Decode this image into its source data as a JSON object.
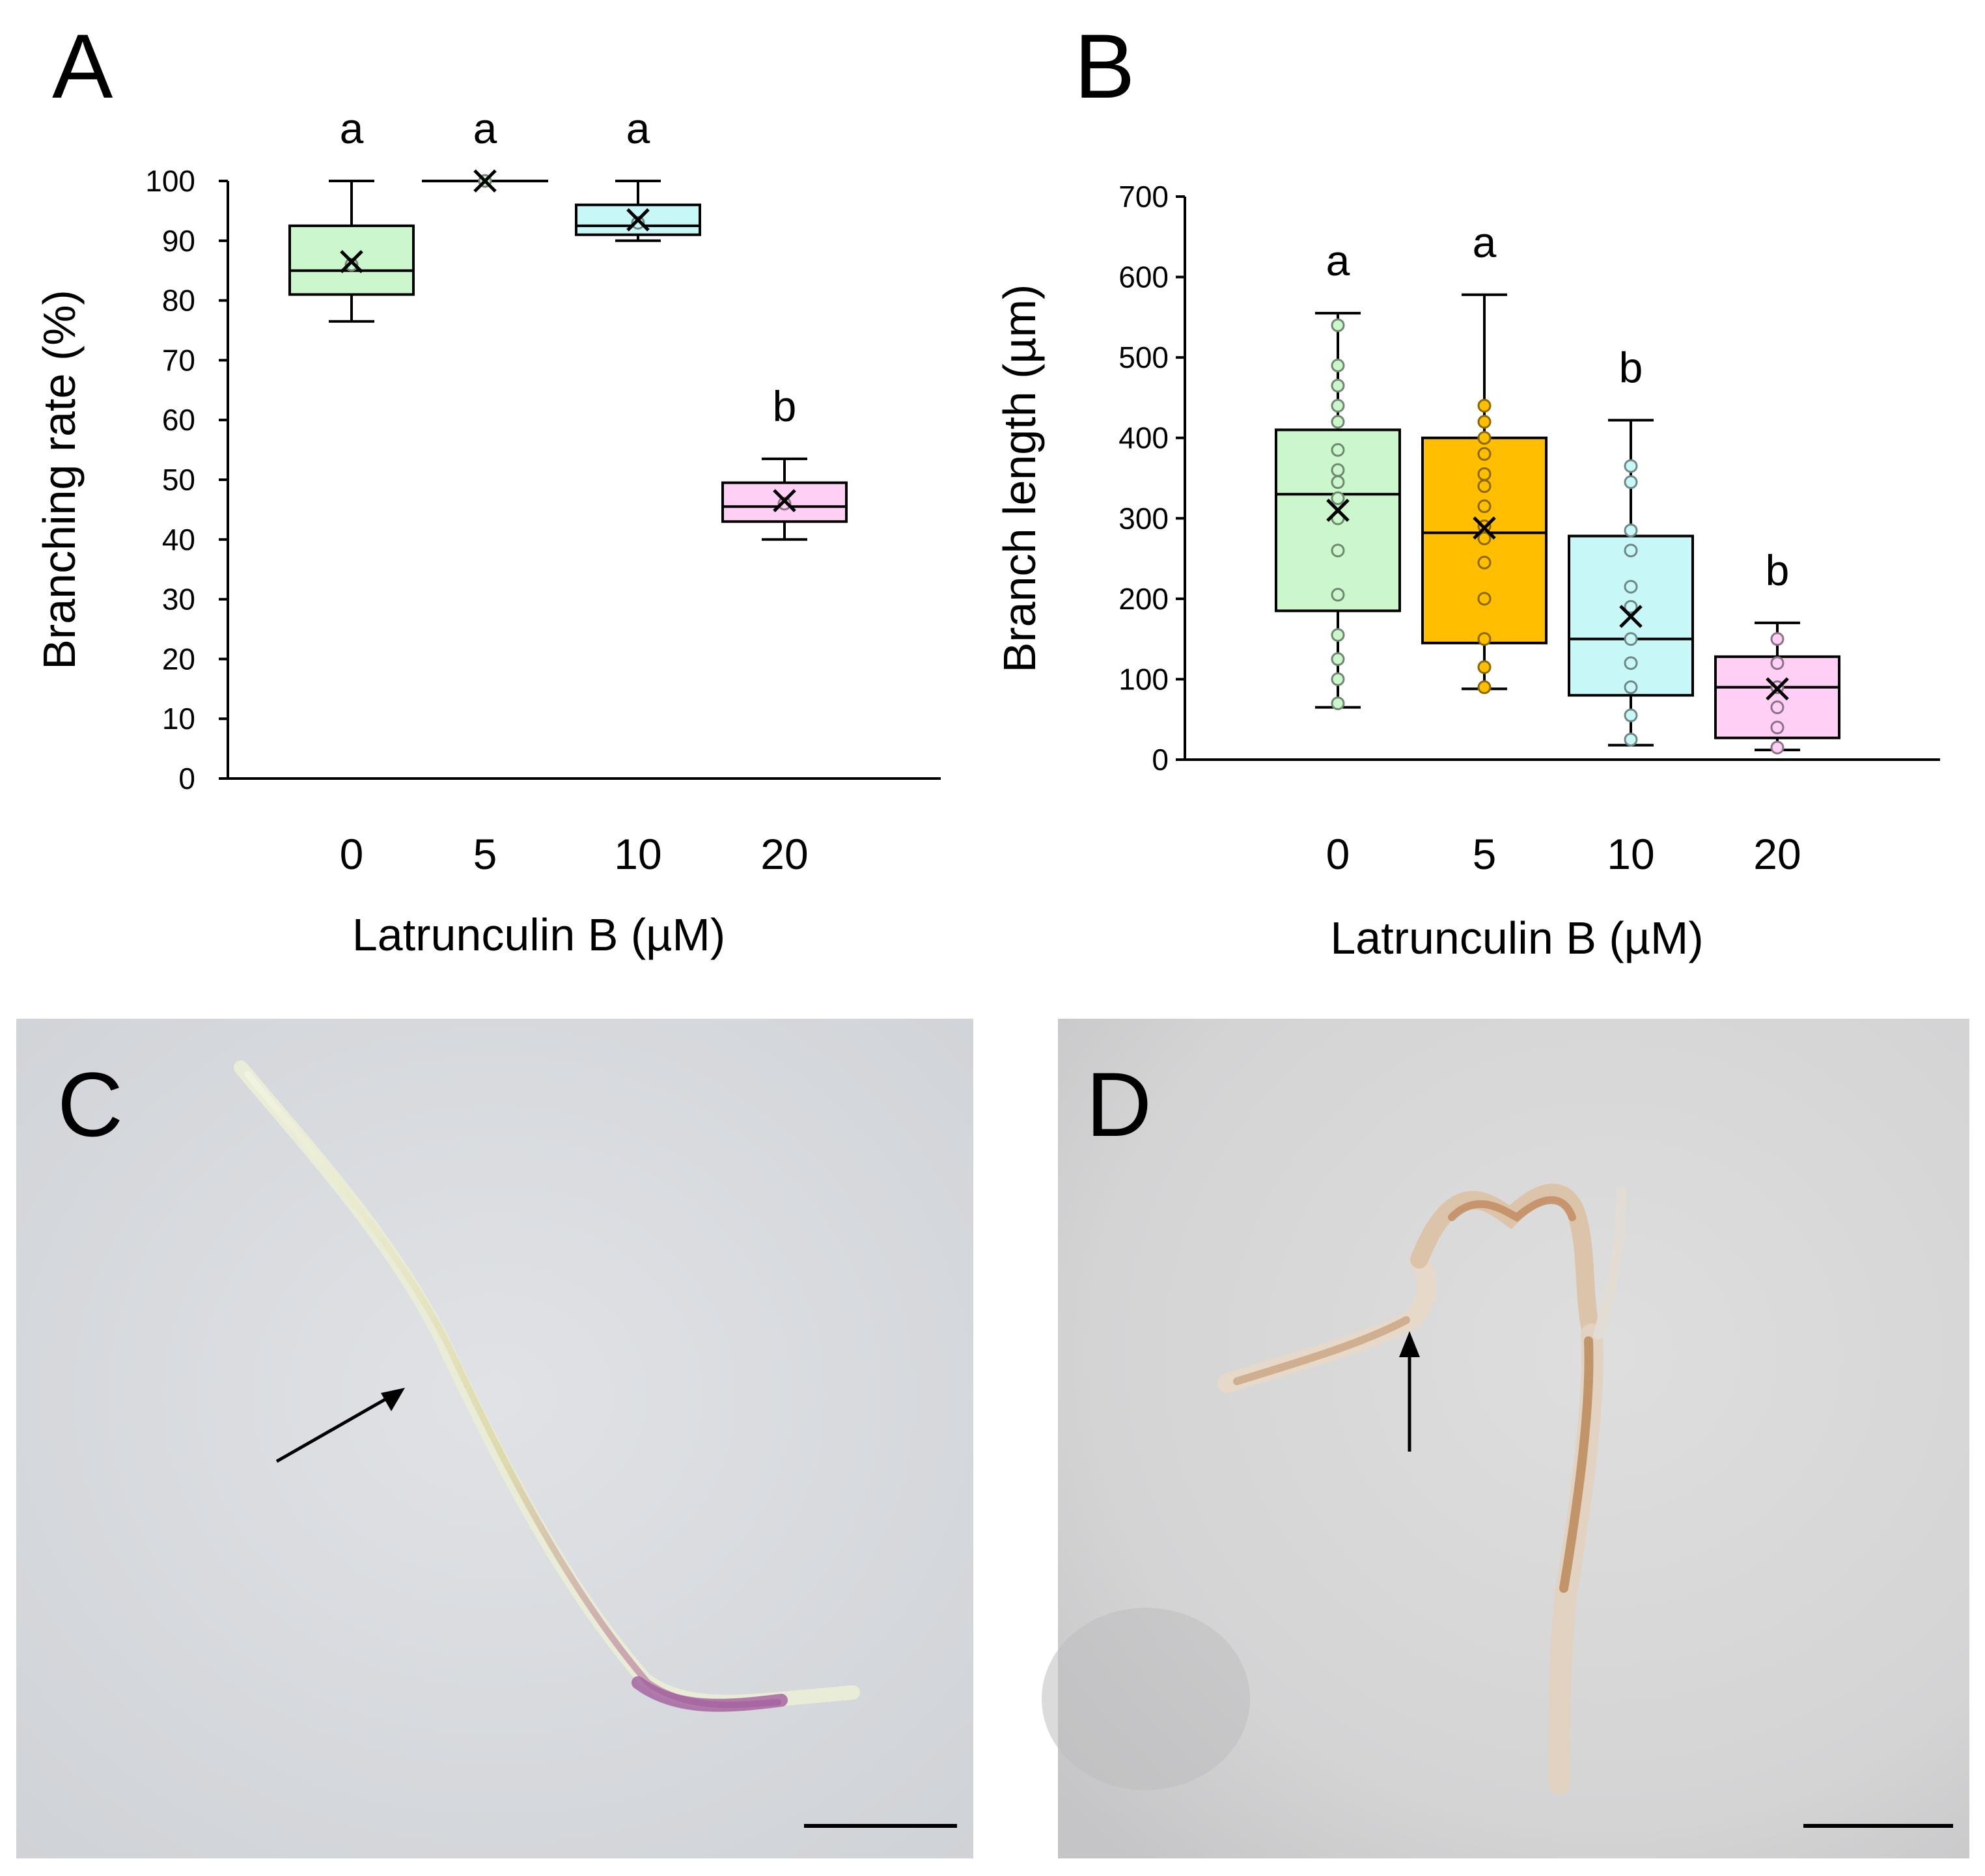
{
  "panels": {
    "a": {
      "letter": "A"
    },
    "b": {
      "letter": "B"
    },
    "c": {
      "letter": "C"
    },
    "d": {
      "letter": "D"
    }
  },
  "chart_data": [
    {
      "panel": "A",
      "type": "box",
      "xlabel": "Latrunculin B  (µM)",
      "ylabel": "Branching rate (%)",
      "ylim": [
        0,
        100
      ],
      "yticks": [
        0,
        10,
        20,
        30,
        40,
        50,
        60,
        70,
        80,
        90,
        100
      ],
      "categories": [
        "0",
        "5",
        "10",
        "20"
      ],
      "boxes": [
        {
          "category": "0",
          "min": 76.5,
          "q1": 81,
          "median": 85,
          "q3": 92.5,
          "max": 100,
          "mean": 86.5,
          "points": [
            86
          ],
          "significance": "a",
          "color": "#ccf7cc"
        },
        {
          "category": "5",
          "min": 100,
          "q1": 100,
          "median": 100,
          "q3": 100,
          "max": 100,
          "mean": 100,
          "points": [
            100
          ],
          "significance": "a",
          "color": "#ccf7cc"
        },
        {
          "category": "10",
          "min": 90,
          "q1": 91,
          "median": 92.5,
          "q3": 96,
          "max": 100,
          "mean": 93.5,
          "points": [
            93
          ],
          "significance": "a",
          "color": "#c8f7f7"
        },
        {
          "category": "20",
          "min": 40,
          "q1": 43,
          "median": 45.5,
          "q3": 49.5,
          "max": 53.5,
          "mean": 46.5,
          "points": [
            46
          ],
          "significance": "b",
          "color": "#ffcff5"
        }
      ]
    },
    {
      "panel": "B",
      "type": "box",
      "xlabel": "Latrunculin B  (µM)",
      "ylabel": "Branch length (µm)",
      "ylim": [
        0,
        700
      ],
      "yticks": [
        0,
        100,
        200,
        300,
        400,
        500,
        600,
        700
      ],
      "categories": [
        "0",
        "5",
        "10",
        "20"
      ],
      "boxes": [
        {
          "category": "0",
          "min": 65,
          "q1": 185,
          "median": 330,
          "q3": 410,
          "max": 555,
          "mean": 310,
          "points": [
            70,
            100,
            125,
            155,
            205,
            260,
            300,
            325,
            345,
            360,
            385,
            420,
            440,
            465,
            490,
            540
          ],
          "significance": "a",
          "color": "#ccf7cc"
        },
        {
          "category": "5",
          "min": 88,
          "q1": 145,
          "median": 282,
          "q3": 400,
          "max": 578,
          "mean": 288,
          "points": [
            90,
            115,
            150,
            200,
            245,
            275,
            290,
            315,
            340,
            355,
            380,
            400,
            420,
            440
          ],
          "significance": "a",
          "color": "#ffbf00"
        },
        {
          "category": "10",
          "min": 18,
          "q1": 80,
          "median": 150,
          "q3": 278,
          "max": 422,
          "mean": 178,
          "points": [
            25,
            55,
            90,
            120,
            150,
            190,
            215,
            260,
            285,
            345,
            365
          ],
          "significance": "b",
          "color": "#c8f7f7"
        },
        {
          "category": "20",
          "min": 12,
          "q1": 27,
          "median": 90,
          "q3": 128,
          "max": 170,
          "mean": 88,
          "points": [
            15,
            40,
            65,
            90,
            120,
            150
          ],
          "significance": "b",
          "color": "#ffcff5"
        }
      ]
    }
  ]
}
